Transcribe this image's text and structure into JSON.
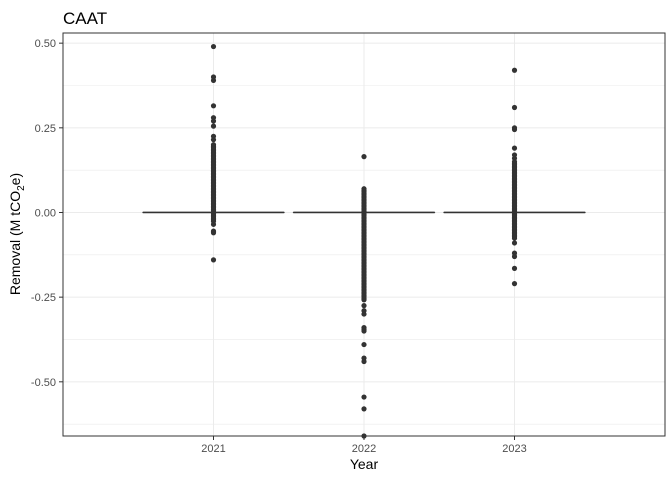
{
  "chart_data": {
    "type": "boxplot",
    "title": "CAAT",
    "xlabel": "Year",
    "ylabel_prefix": "Removal (M tCO",
    "ylabel_sub": "2",
    "ylabel_suffix": "e)",
    "categories": [
      "2021",
      "2022",
      "2023"
    ],
    "ylim": [
      -0.66,
      0.53
    ],
    "y_ticks": [
      -0.5,
      -0.25,
      0.0,
      0.25,
      0.5
    ],
    "y_tick_labels": [
      "-0.50",
      "-0.25",
      "0.00",
      "0.25",
      "0.50"
    ],
    "grid": true,
    "legend": "none",
    "series": [
      {
        "category": "2021",
        "median": 0.0,
        "q1": 0.0,
        "q3": 0.0,
        "outlier_band": [
          -0.03,
          0.2
        ],
        "outliers": [
          0.49,
          0.4,
          0.39,
          0.315,
          0.28,
          0.27,
          0.255,
          0.225,
          0.215,
          -0.035,
          -0.055,
          -0.06,
          -0.14
        ]
      },
      {
        "category": "2022",
        "median": 0.0,
        "q1": 0.0,
        "q3": 0.0,
        "outlier_band": [
          -0.26,
          0.07
        ],
        "outliers": [
          0.165,
          -0.275,
          -0.29,
          -0.3,
          -0.34,
          -0.345,
          -0.35,
          -0.39,
          -0.43,
          -0.44,
          -0.545,
          -0.58,
          -0.66
        ]
      },
      {
        "category": "2023",
        "median": 0.0,
        "q1": 0.0,
        "q3": 0.0,
        "outlier_band": [
          -0.08,
          0.15
        ],
        "outliers": [
          0.42,
          0.31,
          0.25,
          0.245,
          0.19,
          0.17,
          0.16,
          -0.09,
          -0.12,
          -0.13,
          -0.165,
          -0.21
        ]
      }
    ],
    "colors": {
      "point": "#333333",
      "box": "#333333",
      "grid": "#ebebeb",
      "panel_border": "#333333",
      "tick": "#333333"
    }
  }
}
